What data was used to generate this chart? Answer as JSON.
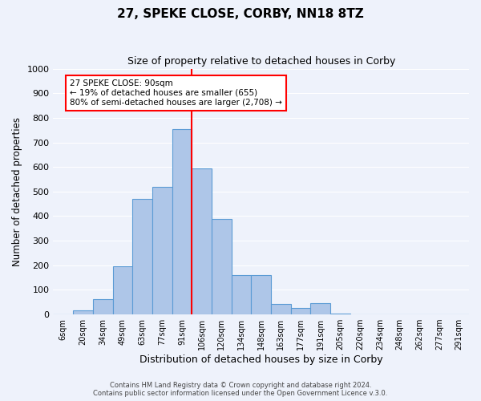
{
  "title": "27, SPEKE CLOSE, CORBY, NN18 8TZ",
  "subtitle": "Size of property relative to detached houses in Corby",
  "xlabel": "Distribution of detached houses by size in Corby",
  "ylabel": "Number of detached properties",
  "footer_line1": "Contains HM Land Registry data © Crown copyright and database right 2024.",
  "footer_line2": "Contains public sector information licensed under the Open Government Licence v.3.0.",
  "bin_labels": [
    "6sqm",
    "20sqm",
    "34sqm",
    "49sqm",
    "63sqm",
    "77sqm",
    "91sqm",
    "106sqm",
    "120sqm",
    "134sqm",
    "148sqm",
    "163sqm",
    "177sqm",
    "191sqm",
    "205sqm",
    "220sqm",
    "234sqm",
    "248sqm",
    "262sqm",
    "277sqm",
    "291sqm"
  ],
  "bar_values": [
    0,
    15,
    62,
    195,
    470,
    520,
    755,
    595,
    390,
    160,
    160,
    42,
    25,
    45,
    5,
    0,
    0,
    0,
    0,
    0,
    0
  ],
  "bar_color": "#aec6e8",
  "bar_edge_color": "#5b9bd5",
  "vline_x_index": 6,
  "vline_color": "red",
  "ylim": [
    0,
    1000
  ],
  "yticks": [
    0,
    100,
    200,
    300,
    400,
    500,
    600,
    700,
    800,
    900,
    1000
  ],
  "annotation_text": "27 SPEKE CLOSE: 90sqm\n← 19% of detached houses are smaller (655)\n80% of semi-detached houses are larger (2,708) →",
  "annotation_box_color": "white",
  "annotation_box_edge": "red",
  "bg_color": "#eef2fb",
  "grid_color": "white"
}
